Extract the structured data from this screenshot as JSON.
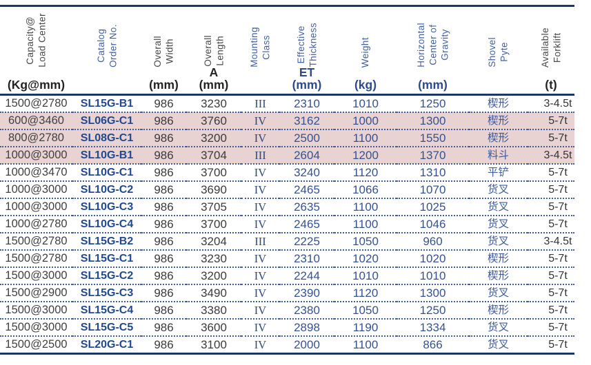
{
  "colors": {
    "navy": "#1c3667",
    "hblue": "#44619e",
    "ublue": "#2d4a8c",
    "dark": "#47474a",
    "dotline": "#3f5b98",
    "pink": "#e8d2d2"
  },
  "table": {
    "columns": [
      {
        "id": "capacity-load-center",
        "label": "Capacity@\nLoad Center",
        "unit": "(Kg@mm)",
        "label_style": "dark",
        "unit_style": "dark"
      },
      {
        "id": "catalog-order-no",
        "label": "Catalog\nOrder No.",
        "unit": "",
        "label_style": "blue",
        "unit_style": "dark"
      },
      {
        "id": "overall-width",
        "label": "Overall\nWidth",
        "unit": "(mm)",
        "label_style": "dark",
        "unit_style": "dark"
      },
      {
        "id": "overall-length",
        "label": "Overall\nLength",
        "unit": "A\n(mm)",
        "label_style": "dark",
        "unit_style": "dark"
      },
      {
        "id": "mounting-class",
        "label": "Mounting\nClass",
        "unit": "",
        "label_style": "blue",
        "unit_style": "dark"
      },
      {
        "id": "effective-thickness",
        "label": "Effective\nThickness",
        "unit": "ET\n(mm)",
        "label_style": "blue",
        "unit_style": "blue"
      },
      {
        "id": "weight",
        "label": "Weight",
        "unit": "(kg)",
        "label_style": "blue",
        "unit_style": "blue"
      },
      {
        "id": "horizontal-center-of-gravity",
        "label": "Horizontal\nCenter of\nGravity",
        "unit": "(mm)",
        "label_style": "blue",
        "unit_style": "blue"
      },
      {
        "id": "shovel-type",
        "label": "Shovel\nPyte",
        "unit": "",
        "label_style": "blue",
        "unit_style": "dark"
      },
      {
        "id": "available-forklift",
        "label": "Available\nForklift",
        "unit": "(t)",
        "label_style": "dark",
        "unit_style": "dark"
      }
    ],
    "rows": [
      {
        "highlight": false,
        "cells": [
          "1500@2780",
          "SL15G-B1",
          "986",
          "3230",
          "III",
          "2310",
          "1010",
          "1250",
          "楔形",
          "3-4.5t"
        ]
      },
      {
        "highlight": true,
        "cells": [
          "600@3460",
          "SL06G-C1",
          "986",
          "3760",
          "IV",
          "3162",
          "1000",
          "1300",
          "楔形",
          "5-7t"
        ]
      },
      {
        "highlight": true,
        "cells": [
          "800@2780",
          "SL08G-C1",
          "986",
          "3200",
          "IV",
          "2500",
          "1100",
          "1550",
          "楔形",
          "5-7t"
        ]
      },
      {
        "highlight": true,
        "cells": [
          "1000@3000",
          "SL10G-B1",
          "986",
          "3704",
          "III",
          "2604",
          "1200",
          "1370",
          "料斗",
          "3-4.5t"
        ]
      },
      {
        "highlight": false,
        "cells": [
          "1000@3470",
          "SL10G-C1",
          "986",
          "3700",
          "IV",
          "3240",
          "1120",
          "1310",
          "平铲",
          "5-7t"
        ]
      },
      {
        "highlight": false,
        "cells": [
          "1000@3000",
          "SL10G-C2",
          "986",
          "3690",
          "IV",
          "2465",
          "1066",
          "1070",
          "货叉",
          "5-7t"
        ]
      },
      {
        "highlight": false,
        "cells": [
          "1000@3000",
          "SL10G-C3",
          "986",
          "3705",
          "IV",
          "2635",
          "1100",
          "1025",
          "货叉",
          "5-7t"
        ]
      },
      {
        "highlight": false,
        "cells": [
          "1000@2780",
          "SL10G-C4",
          "986",
          "3700",
          "IV",
          "2465",
          "1100",
          "1046",
          "货叉",
          "5-7t"
        ]
      },
      {
        "highlight": false,
        "cells": [
          "1500@2780",
          "SL15G-B2",
          "986",
          "3204",
          "III",
          "2225",
          "1050",
          "960",
          "货叉",
          "3-4.5t"
        ]
      },
      {
        "highlight": false,
        "cells": [
          "1500@2780",
          "SL15G-C1",
          "986",
          "3230",
          "IV",
          "2310",
          "1020",
          "1020",
          "楔形",
          "5-7t"
        ]
      },
      {
        "highlight": false,
        "cells": [
          "1500@3000",
          "SL15G-C2",
          "986",
          "3200",
          "IV",
          "2244",
          "1010",
          "1010",
          "楔形",
          "5-7t"
        ]
      },
      {
        "highlight": false,
        "cells": [
          "1500@2900",
          "SL15G-C3",
          "986",
          "3490",
          "IV",
          "2390",
          "1120",
          "1300",
          "货叉",
          "5-7t"
        ]
      },
      {
        "highlight": false,
        "cells": [
          "1500@3000",
          "SL15G-C4",
          "986",
          "3380",
          "IV",
          "2380",
          "1050",
          "1250",
          "楔形",
          "5-7t"
        ]
      },
      {
        "highlight": false,
        "cells": [
          "1500@3000",
          "SL15G-C5",
          "986",
          "3600",
          "IV",
          "2898",
          "1190",
          "1334",
          "货叉",
          "5-7t"
        ]
      },
      {
        "highlight": false,
        "cells": [
          "1500@2500",
          "SL20G-C1",
          "986",
          "3100",
          "IV",
          "2000",
          "1100",
          "866",
          "货叉",
          "5-7t"
        ]
      }
    ]
  }
}
